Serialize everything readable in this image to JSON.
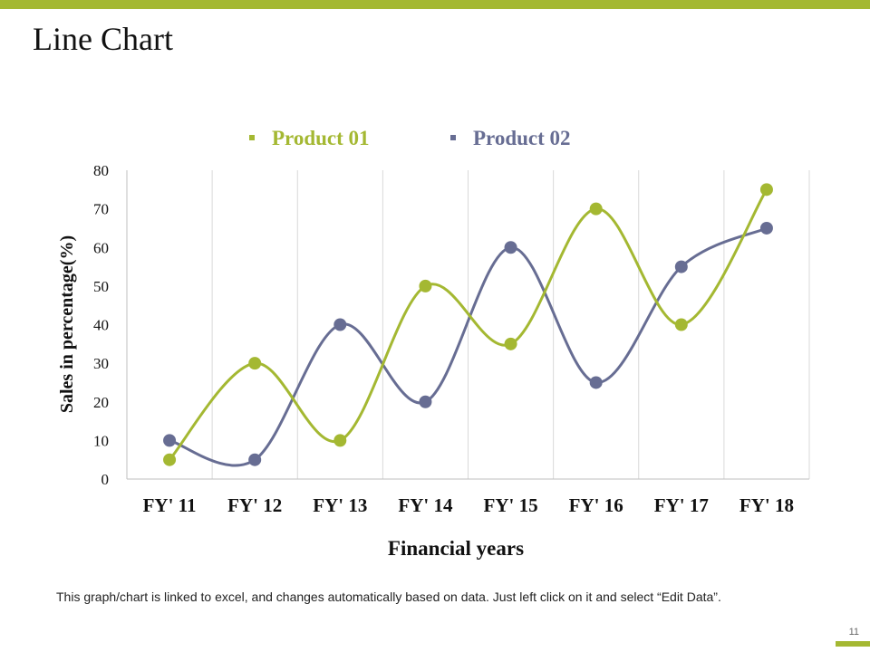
{
  "slide": {
    "title": "Line Chart",
    "footnote": "This graph/chart is linked to excel, and changes automatically based on data. Just left click on it and select “Edit Data”.",
    "page_number": "11",
    "accent_color": "#a4b832"
  },
  "chart_data": {
    "type": "line",
    "title": "",
    "categories": [
      "FY' 11",
      "FY' 12",
      "FY' 13",
      "FY' 14",
      "FY' 15",
      "FY' 16",
      "FY' 17",
      "FY' 18"
    ],
    "series": [
      {
        "name": "Product 01",
        "color": "#a4b832",
        "values": [
          5,
          30,
          10,
          50,
          35,
          70,
          40,
          75
        ]
      },
      {
        "name": "Product 02",
        "color": "#676d93",
        "values": [
          10,
          5,
          40,
          20,
          60,
          25,
          55,
          65
        ]
      }
    ],
    "xlabel": "Financial years",
    "ylabel": "Sales in percentage(%)",
    "ylim": [
      0,
      80
    ],
    "yticks": [
      0,
      10,
      20,
      30,
      40,
      50,
      60,
      70,
      80
    ],
    "legend_position": "top",
    "grid": "vertical",
    "smooth": true
  }
}
